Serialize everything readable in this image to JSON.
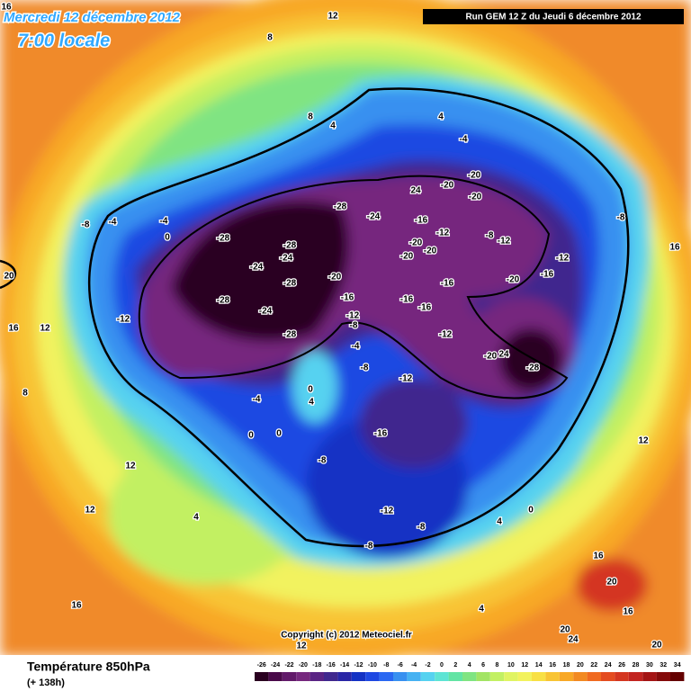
{
  "header": {
    "date": "Mercredi 12 décembre 2012",
    "time": "7:00 locale",
    "run": "Run GEM 12 Z du Jeudi 6 décembre 2012"
  },
  "footer": {
    "title": "Température 850hPa",
    "lead": "(+ 138h)",
    "copyright": "Copyright (c) 2012 Meteociel.fr"
  },
  "legend": {
    "labels": [
      -26,
      -24,
      -22,
      -20,
      -18,
      -16,
      -14,
      -12,
      -10,
      -8,
      -6,
      -4,
      -2,
      0,
      2,
      4,
      6,
      8,
      10,
      12,
      14,
      16,
      18,
      20,
      22,
      24,
      26,
      28,
      30,
      32,
      34
    ],
    "colors": [
      "#2a0020",
      "#4a0a4a",
      "#621a6a",
      "#76287e",
      "#5a2484",
      "#40288e",
      "#2a26a6",
      "#1432c4",
      "#1e48e2",
      "#2a68f2",
      "#3890f0",
      "#46b2f2",
      "#56d2f0",
      "#5ee4d4",
      "#62e4a4",
      "#80e482",
      "#a2e464",
      "#c2f062",
      "#e0f462",
      "#f2f25e",
      "#f8e044",
      "#f8c434",
      "#f8a826",
      "#f28a22",
      "#f06a20",
      "#e44c20",
      "#d43620",
      "#c22420",
      "#a41414",
      "#840a0a",
      "#640000"
    ]
  },
  "map": {
    "labels": [
      "16",
      "12",
      "8",
      "8",
      "4",
      "4",
      "-4",
      "16",
      "20",
      "16",
      "12",
      "8",
      "12",
      "12",
      "4",
      "16",
      "12",
      "12",
      "16",
      "20",
      "20",
      "24",
      "16",
      "20",
      "4",
      "4",
      "0",
      "-28",
      "-24",
      "-28",
      "-28",
      "-24",
      "-24",
      "-28",
      "-28",
      "-24",
      "-28",
      "-20",
      "-16",
      "-12",
      "-12",
      "-8",
      "-4",
      "-8",
      "-12",
      "-16",
      "-16",
      "-16",
      "-12",
      "-20",
      "-20",
      "-20",
      "-16",
      "-12",
      "24",
      "-20",
      "-20",
      "-20",
      "-8",
      "-12",
      "-20",
      "-16",
      "-12",
      "-8",
      "-20",
      "24",
      "-28",
      "-8",
      "-4",
      "-4",
      "0",
      "-16",
      "-8",
      "-12",
      "-8",
      "-8",
      "0",
      "0",
      "-4",
      "4",
      "0"
    ]
  }
}
